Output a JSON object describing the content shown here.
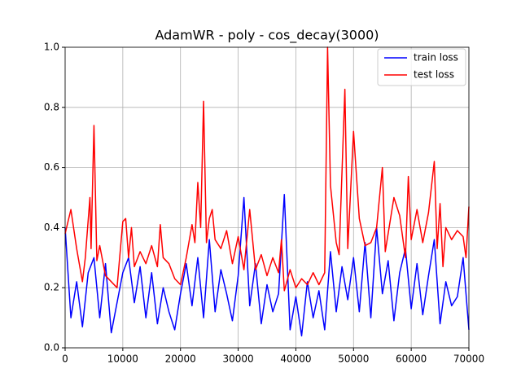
{
  "chart_data": {
    "type": "line",
    "title": "AdamWR - poly - cos_decay(3000)",
    "xlim": [
      0,
      70000
    ],
    "xticks": [
      0,
      10000,
      20000,
      30000,
      40000,
      50000,
      60000,
      70000
    ],
    "ylim": [
      0,
      1
    ],
    "yticks": [
      {
        "value": 0,
        "label": "0.0"
      },
      {
        "value": 0.2,
        "label": "0.2"
      },
      {
        "value": 0.4,
        "label": "0.4"
      },
      {
        "value": 0.6,
        "label": "0.6"
      },
      {
        "value": 0.8,
        "label": "0.8"
      },
      {
        "value": 1,
        "label": "1.0"
      }
    ],
    "grid": true,
    "legend": "upper right",
    "series": [
      {
        "name": "train loss",
        "color": "#0000ff",
        "x": [
          0,
          1000,
          2000,
          3000,
          4000,
          5000,
          6000,
          7000,
          8000,
          9000,
          10000,
          11000,
          12000,
          13000,
          14000,
          15000,
          16000,
          17000,
          18000,
          19000,
          20000,
          21000,
          22000,
          23000,
          24000,
          25000,
          26000,
          27000,
          28000,
          29000,
          30000,
          31000,
          32000,
          33000,
          34000,
          35000,
          36000,
          37000,
          38000,
          39000,
          40000,
          41000,
          42000,
          43000,
          44000,
          45000,
          46000,
          47000,
          48000,
          49000,
          50000,
          51000,
          52000,
          53000,
          54000,
          55000,
          56000,
          57000,
          58000,
          59000,
          60000,
          61000,
          62000,
          63000,
          64000,
          65000,
          66000,
          67000,
          68000,
          69000,
          70000
        ],
        "values": [
          0.4,
          0.1,
          0.22,
          0.07,
          0.25,
          0.3,
          0.1,
          0.28,
          0.05,
          0.15,
          0.25,
          0.3,
          0.15,
          0.27,
          0.1,
          0.25,
          0.08,
          0.2,
          0.12,
          0.06,
          0.18,
          0.28,
          0.14,
          0.3,
          0.1,
          0.36,
          0.12,
          0.26,
          0.18,
          0.09,
          0.24,
          0.5,
          0.14,
          0.28,
          0.08,
          0.21,
          0.12,
          0.18,
          0.51,
          0.06,
          0.17,
          0.04,
          0.22,
          0.1,
          0.19,
          0.06,
          0.32,
          0.12,
          0.27,
          0.16,
          0.3,
          0.12,
          0.35,
          0.1,
          0.4,
          0.18,
          0.29,
          0.09,
          0.25,
          0.33,
          0.13,
          0.28,
          0.11,
          0.24,
          0.36,
          0.08,
          0.22,
          0.14,
          0.17,
          0.3,
          0.06
        ]
      },
      {
        "name": "test loss",
        "color": "#ff0000",
        "x": [
          0,
          1000,
          2000,
          3000,
          3500,
          4300,
          4500,
          5000,
          5500,
          6000,
          7000,
          8000,
          9000,
          10000,
          10500,
          11000,
          11500,
          12000,
          13000,
          14000,
          15000,
          16000,
          16500,
          17000,
          18000,
          19000,
          20000,
          21000,
          22000,
          22500,
          23000,
          23500,
          24000,
          24500,
          25000,
          25500,
          26000,
          27000,
          28000,
          29000,
          30000,
          31000,
          32000,
          33000,
          34000,
          35000,
          36000,
          37000,
          37500,
          38000,
          39000,
          40000,
          41000,
          42000,
          43000,
          44000,
          45000,
          45500,
          46000,
          47000,
          47500,
          48500,
          49000,
          50000,
          51000,
          52000,
          53000,
          54000,
          55000,
          55500,
          56000,
          57000,
          58000,
          59000,
          59500,
          60000,
          61000,
          62000,
          63000,
          64000,
          64500,
          65000,
          65500,
          66000,
          67000,
          68000,
          69000,
          69500,
          70000
        ],
        "values": [
          0.38,
          0.46,
          0.33,
          0.22,
          0.3,
          0.5,
          0.33,
          0.74,
          0.29,
          0.34,
          0.24,
          0.22,
          0.2,
          0.42,
          0.43,
          0.3,
          0.4,
          0.27,
          0.32,
          0.28,
          0.34,
          0.27,
          0.41,
          0.3,
          0.28,
          0.23,
          0.21,
          0.3,
          0.41,
          0.35,
          0.55,
          0.4,
          0.82,
          0.35,
          0.43,
          0.46,
          0.36,
          0.33,
          0.39,
          0.28,
          0.37,
          0.26,
          0.46,
          0.26,
          0.31,
          0.24,
          0.3,
          0.25,
          0.36,
          0.19,
          0.26,
          0.2,
          0.23,
          0.21,
          0.25,
          0.21,
          0.25,
          1.0,
          0.54,
          0.35,
          0.31,
          0.86,
          0.33,
          0.72,
          0.43,
          0.34,
          0.35,
          0.4,
          0.6,
          0.32,
          0.38,
          0.5,
          0.44,
          0.3,
          0.57,
          0.36,
          0.46,
          0.35,
          0.45,
          0.62,
          0.33,
          0.48,
          0.27,
          0.4,
          0.36,
          0.39,
          0.37,
          0.3,
          0.47
        ]
      }
    ]
  }
}
